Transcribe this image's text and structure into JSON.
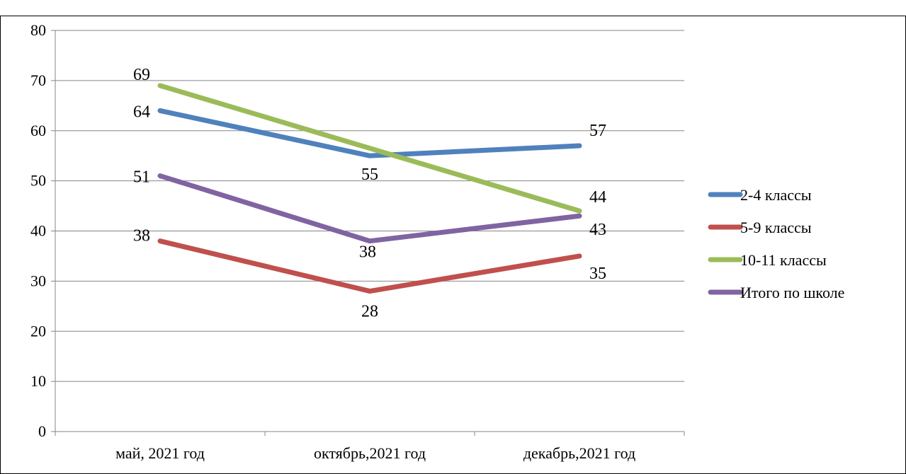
{
  "chart_data": {
    "type": "line",
    "title": "",
    "categories": [
      "май, 2021 год",
      "октябрь,2021 год",
      "декабрь,2021 год"
    ],
    "yticks": [
      "0",
      "10",
      "20",
      "30",
      "40",
      "50",
      "60",
      "70",
      "80"
    ],
    "ylim": [
      0,
      80
    ],
    "grid": true,
    "legend_position": "right",
    "series": [
      {
        "name": "2-4 классы",
        "values": [
          64,
          55,
          57
        ],
        "color": "#4f81bd"
      },
      {
        "name": "5-9 классы",
        "values": [
          38,
          28,
          35
        ],
        "color": "#c0504d"
      },
      {
        "name": "10-11 классы",
        "values": [
          69,
          null,
          44
        ],
        "color": "#9bbb59"
      },
      {
        "name": "Итого по школе",
        "values": [
          51,
          38,
          43
        ],
        "color": "#8064a2"
      }
    ]
  }
}
